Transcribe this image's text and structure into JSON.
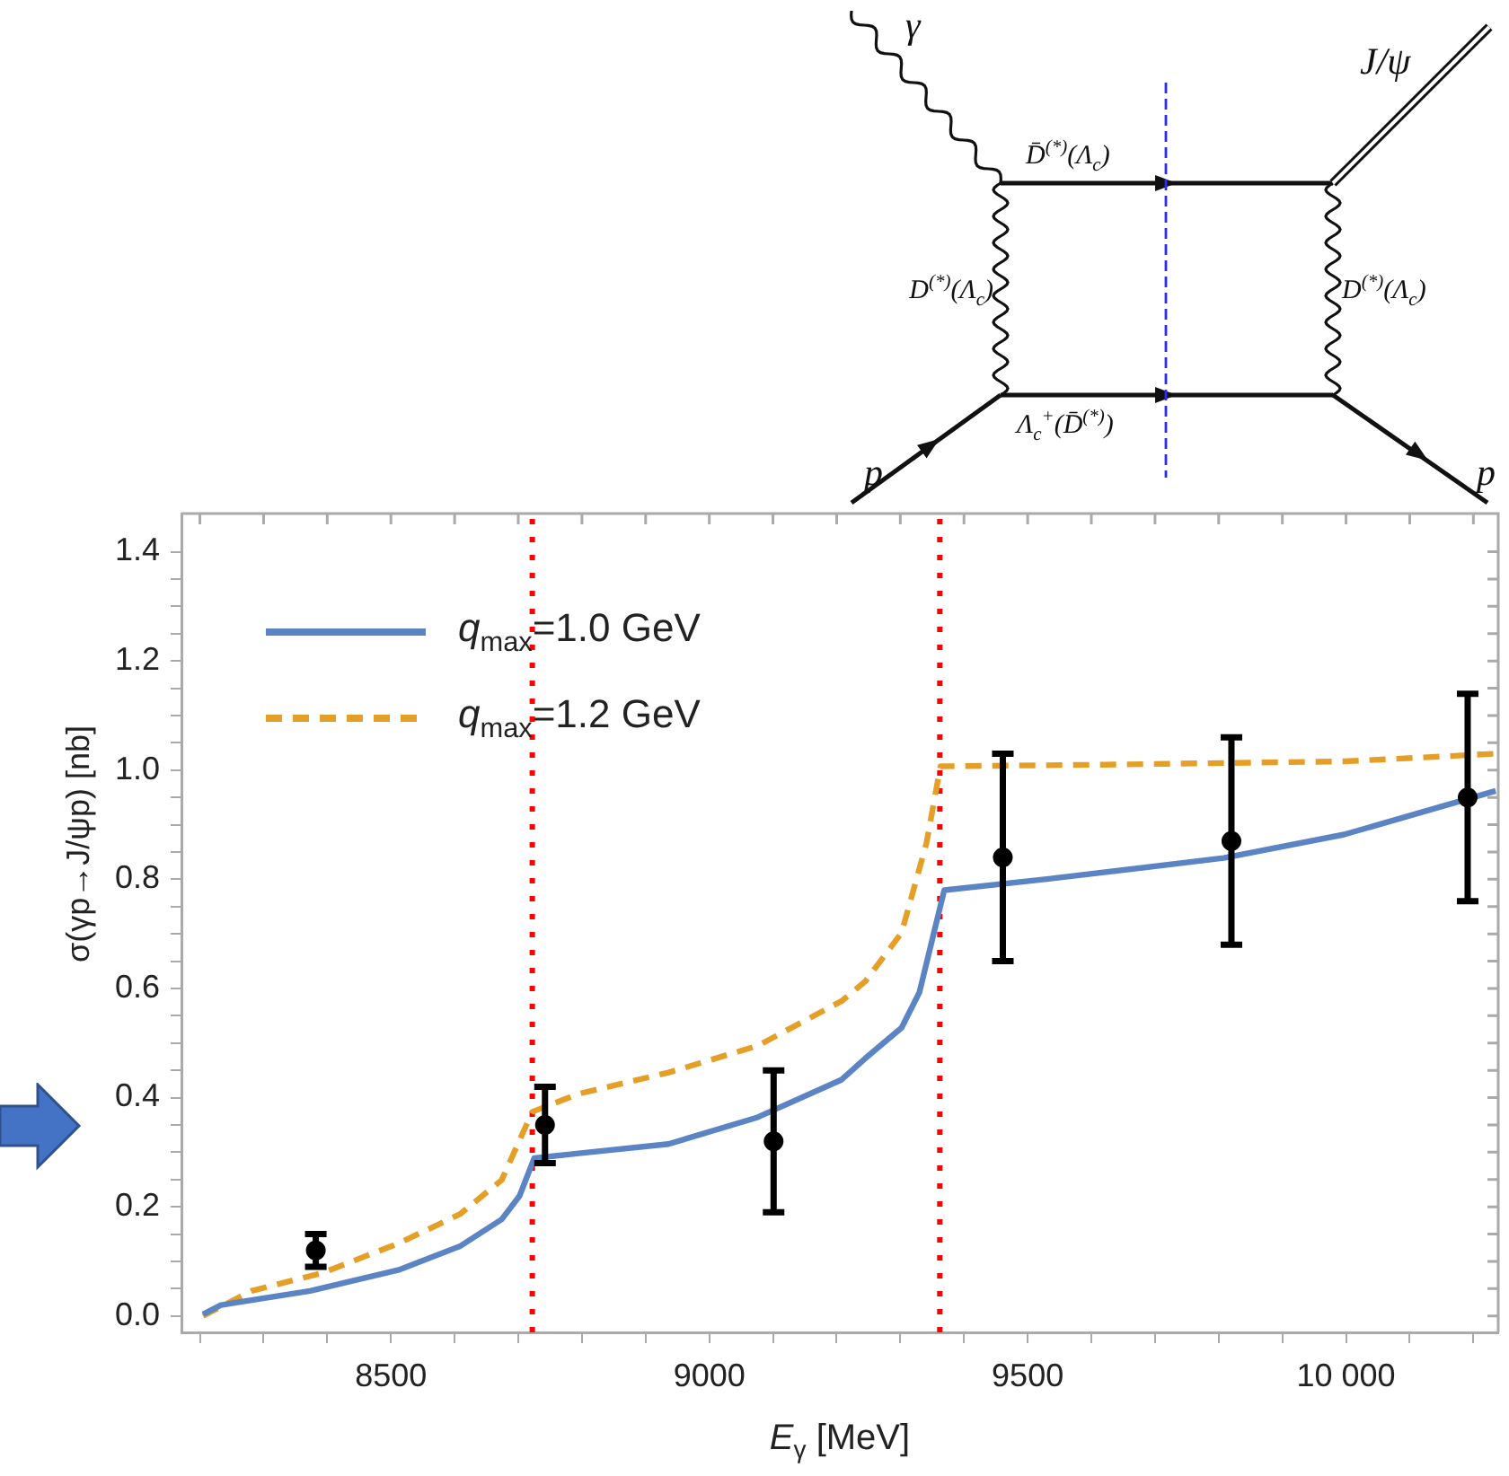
{
  "chart_data": {
    "type": "line",
    "xlabel": "E$_{γ}$ [MeV]",
    "ylabel": "σ(γp→J/ψp) [nb]",
    "xlim": [
      8171,
      10239
    ],
    "ylim": [
      -0.03,
      1.47
    ],
    "xticks": [
      {
        "value": 8200,
        "label": null
      },
      {
        "value": 8300,
        "label": null
      },
      {
        "value": 8400,
        "label": null
      },
      8500,
      {
        "value": 8600,
        "label": null
      },
      {
        "value": 8700,
        "label": null
      },
      {
        "value": 8800,
        "label": null
      },
      {
        "value": 8900,
        "label": null
      },
      9000,
      {
        "value": 9100,
        "label": null
      },
      {
        "value": 9200,
        "label": null
      },
      {
        "value": 9300,
        "label": null
      },
      {
        "value": 9400,
        "label": null
      },
      9500,
      {
        "value": 9600,
        "label": null
      },
      {
        "value": 9700,
        "label": null
      },
      {
        "value": 9800,
        "label": null
      },
      {
        "value": 9900,
        "label": null
      },
      {
        "value": 10000,
        "label": "10 000"
      },
      {
        "value": 10100,
        "label": null
      },
      {
        "value": 10200,
        "label": null
      }
    ],
    "yticks": [
      {
        "value": 0,
        "label": "0.0"
      },
      {
        "value": 0.05,
        "label": null
      },
      {
        "value": 0.1,
        "label": null
      },
      {
        "value": 0.15,
        "label": null
      },
      0.2,
      {
        "value": 0.25,
        "label": null
      },
      {
        "value": 0.3,
        "label": null
      },
      {
        "value": 0.35,
        "label": null
      },
      0.4,
      {
        "value": 0.45,
        "label": null
      },
      {
        "value": 0.5,
        "label": null
      },
      {
        "value": 0.55,
        "label": null
      },
      0.6,
      {
        "value": 0.65,
        "label": null
      },
      {
        "value": 0.7,
        "label": null
      },
      {
        "value": 0.75,
        "label": null
      },
      0.8,
      {
        "value": 0.85,
        "label": null
      },
      {
        "value": 0.9,
        "label": null
      },
      {
        "value": 0.95,
        "label": null
      },
      {
        "value": 1,
        "label": "1.0"
      },
      {
        "value": 1.05,
        "label": null
      },
      {
        "value": 1.1,
        "label": null
      },
      {
        "value": 1.15,
        "label": null
      },
      1.2,
      {
        "value": 1.25,
        "label": null
      },
      {
        "value": 1.3,
        "label": null
      },
      {
        "value": 1.35,
        "label": null
      },
      1.4
    ],
    "grid": false,
    "legend": "top left",
    "series": [
      {
        "name": "q$_{max}$=1.0 GeV",
        "type": "line",
        "color": "#5b84c4",
        "line_style": "solid",
        "marker": "none",
        "x": [
          8205,
          8233,
          8373,
          8514,
          8609,
          8674,
          8702,
          8725,
          8795,
          8936,
          9076,
          9208,
          9245,
          9302,
          9330,
          9369,
          9527,
          9808,
          9997,
          10235
        ],
        "values": [
          0.003,
          0.02,
          0.046,
          0.085,
          0.128,
          0.177,
          0.22,
          0.289,
          0.298,
          0.315,
          0.364,
          0.433,
          0.472,
          0.528,
          0.593,
          0.78,
          0.8,
          0.839,
          0.882,
          0.962
        ]
      },
      {
        "name": "q$_{max}$=1.2 GeV",
        "type": "line",
        "color": "#e69f26",
        "line_style": "dashed",
        "marker": "none",
        "x": [
          8205,
          8281,
          8393,
          8514,
          8609,
          8674,
          8722,
          8795,
          8936,
          9076,
          9208,
          9245,
          9302,
          9341,
          9363,
          9620,
          9997,
          10235
        ],
        "values": [
          0.0,
          0.046,
          0.079,
          0.134,
          0.187,
          0.249,
          0.374,
          0.407,
          0.446,
          0.495,
          0.577,
          0.613,
          0.702,
          0.866,
          1.007,
          1.01,
          1.016,
          1.03
        ]
      },
      {
        "type": "scatter",
        "color": "#000000",
        "marker": "circle",
        "x": [
          8382,
          8742,
          9101,
          9461,
          9820,
          10191
        ],
        "values": [
          0.12,
          0.35,
          0.32,
          0.84,
          0.87,
          0.95
        ],
        "errors": [
          0.03,
          0.07,
          0.13,
          0.19,
          0.19,
          0.19
        ]
      }
    ],
    "ref_lines": [
      {
        "axis": "x",
        "value": 8722,
        "color": "#ff0000",
        "line_style": "dotted"
      },
      {
        "axis": "x",
        "value": 9362,
        "color": "#ff0000",
        "line_style": "dotted"
      }
    ],
    "annotations": [
      "γ",
      "J/ψ",
      "D̄$^{(*)}$(Λ$_{c}$)",
      "D$^{(*)}$(Λ$_{c}$)",
      "D$^{(*)}$(Λ$_{c}$)",
      "Λ$_{c}$$^{+}$(D̄$^{(*)}$)",
      "p",
      "p"
    ]
  }
}
